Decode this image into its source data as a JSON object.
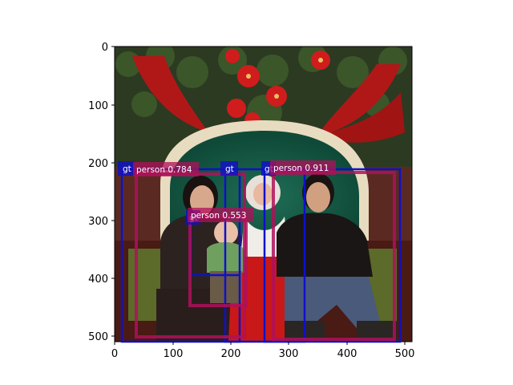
{
  "figure": {
    "x_ticks": [
      "0",
      "100",
      "200",
      "300",
      "400",
      "500"
    ],
    "y_ticks": [
      "0",
      "100",
      "200",
      "300",
      "400",
      "500"
    ],
    "image_description": "Family photo with Santa Claus in front of a green chair and Christmas wreath with poinsettias and red ribbon"
  },
  "detections": [
    {
      "label": "person 0.784",
      "color": "#b0105a"
    },
    {
      "label": "person 0.553",
      "color": "#b0105a"
    },
    {
      "label": "person 0.911",
      "color": "#b0105a"
    }
  ],
  "ground_truth": [
    {
      "label": "gt",
      "color": "#1010c8"
    },
    {
      "label": "gt",
      "color": "#1010c8"
    },
    {
      "label": "gt",
      "color": "#1010c8"
    },
    {
      "label": "gt",
      "color": "#1010c8"
    }
  ],
  "colors": {
    "detection": "#b0105a",
    "ground_truth": "#1010c8",
    "axis": "#000000"
  }
}
